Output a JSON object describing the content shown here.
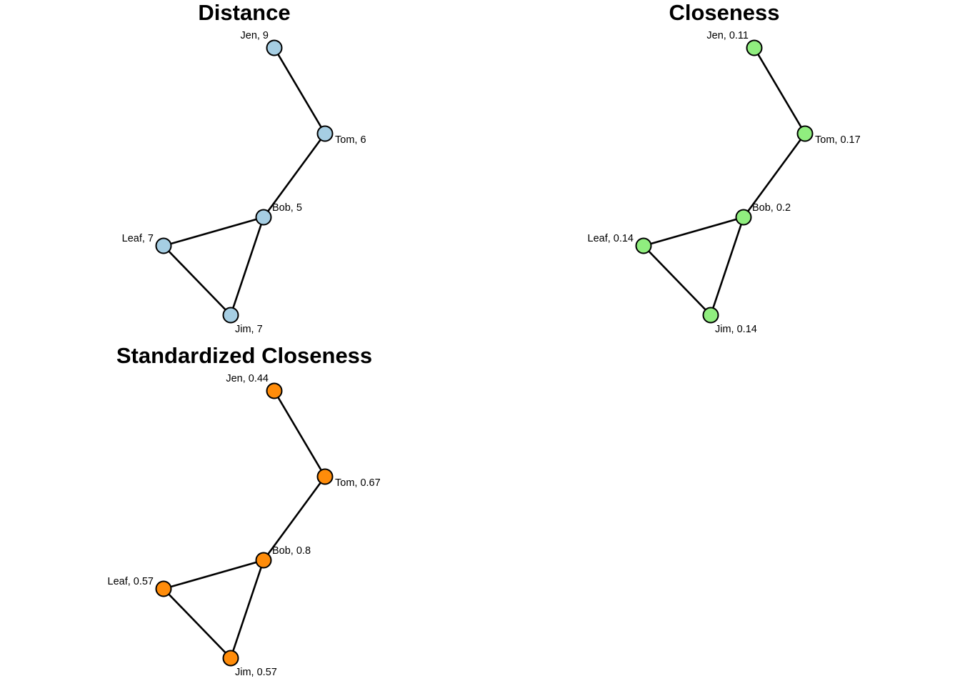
{
  "edges": [
    [
      "Jen",
      "Tom"
    ],
    [
      "Tom",
      "Bob"
    ],
    [
      "Bob",
      "Leaf"
    ],
    [
      "Bob",
      "Jim"
    ],
    [
      "Leaf",
      "Jim"
    ]
  ],
  "panels": [
    {
      "title": "Distance",
      "node_color": "#a6cee3",
      "nodes": [
        {
          "name": "Jen",
          "label": "Jen, 9",
          "value": 9
        },
        {
          "name": "Tom",
          "label": "Tom, 6",
          "value": 6
        },
        {
          "name": "Bob",
          "label": "Bob, 5",
          "value": 5
        },
        {
          "name": "Leaf",
          "label": "Leaf, 7",
          "value": 7
        },
        {
          "name": "Jim",
          "label": "Jim, 7",
          "value": 7
        }
      ]
    },
    {
      "title": "Closeness",
      "node_color": "#90ee7f",
      "nodes": [
        {
          "name": "Jen",
          "label": "Jen, 0.11",
          "value": 0.11
        },
        {
          "name": "Tom",
          "label": "Tom, 0.17",
          "value": 0.17
        },
        {
          "name": "Bob",
          "label": "Bob, 0.2",
          "value": 0.2
        },
        {
          "name": "Leaf",
          "label": "Leaf, 0.14",
          "value": 0.14
        },
        {
          "name": "Jim",
          "label": "Jim, 0.14",
          "value": 0.14
        }
      ]
    },
    {
      "title": "Standardized Closeness",
      "node_color": "#ff8c0a",
      "nodes": [
        {
          "name": "Jen",
          "label": "Jen, 0.44",
          "value": 0.44
        },
        {
          "name": "Tom",
          "label": "Tom, 0.67",
          "value": 0.67
        },
        {
          "name": "Bob",
          "label": "Bob, 0.8",
          "value": 0.8
        },
        {
          "name": "Leaf",
          "label": "Leaf, 0.57",
          "value": 0.57
        },
        {
          "name": "Jim",
          "label": "Jim, 0.57",
          "value": 0.57
        }
      ]
    }
  ]
}
